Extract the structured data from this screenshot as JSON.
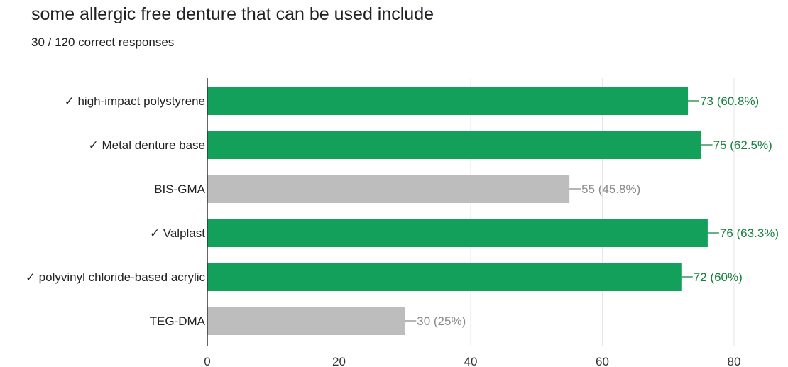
{
  "question": {
    "title": "some allergic free denture that can be used include",
    "summary": "30 / 120 correct responses"
  },
  "colors": {
    "correct": "#12a05b",
    "incorrect": "#bdbdbd",
    "correct_label": "#15803d",
    "incorrect_label": "#8a8a8a",
    "grid": "#e6e6e6",
    "axis": "#333333"
  },
  "chart_data": {
    "type": "bar",
    "orientation": "horizontal",
    "categories": [
      "✓ high-impact polystyrene",
      "✓ Metal denture base",
      "BIS-GMA",
      "✓ Valplast",
      "✓ polyvinyl chloride-based acrylic",
      "TEG-DMA"
    ],
    "values": [
      73,
      75,
      55,
      76,
      72,
      30
    ],
    "correct": [
      true,
      true,
      false,
      true,
      true,
      false
    ],
    "data_labels": [
      "73 (60.8%)",
      "75 (62.5%)",
      "55 (45.8%)",
      "76 (63.3%)",
      "72 (60%)",
      "30 (25%)"
    ],
    "title": "",
    "xlabel": "",
    "ylabel": "",
    "xlim": [
      0,
      80
    ],
    "xticks": [
      0,
      20,
      40,
      60,
      80
    ],
    "grid": true,
    "legend": "none"
  }
}
